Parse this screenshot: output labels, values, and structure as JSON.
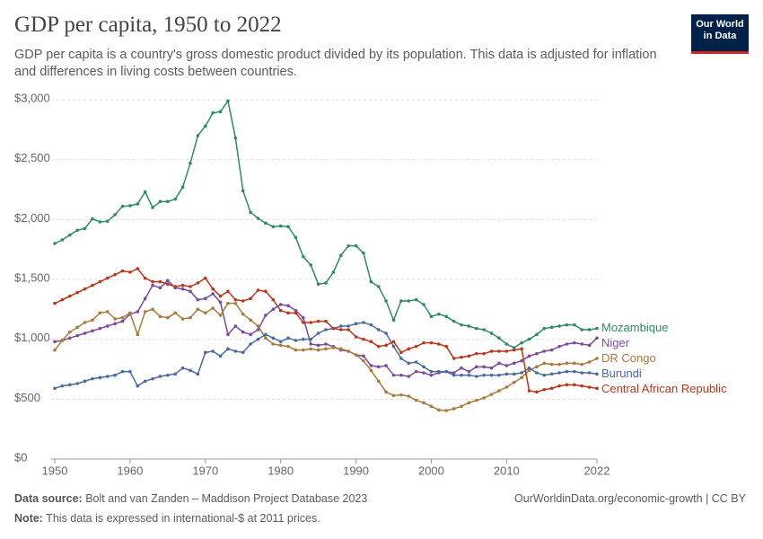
{
  "chart_data": {
    "type": "line",
    "title": "GDP per capita, 1950 to 2022",
    "subtitle": "GDP per capita is a country's gross domestic product divided by its population. This data is adjusted for inflation and differences in living costs between countries.",
    "logo": [
      "Our World",
      "in Data"
    ],
    "source_label": "Data source:",
    "source": "Bolt and van Zanden – Maddison Project Database 2023",
    "url": "OurWorldinData.org/economic-growth | CC BY",
    "note_label": "Note:",
    "note": "This data is expressed in international-$ at 2011 prices.",
    "x": [
      1950,
      1951,
      1952,
      1953,
      1954,
      1955,
      1956,
      1957,
      1958,
      1959,
      1960,
      1961,
      1962,
      1963,
      1964,
      1965,
      1966,
      1967,
      1968,
      1969,
      1970,
      1971,
      1972,
      1973,
      1974,
      1975,
      1976,
      1977,
      1978,
      1979,
      1980,
      1981,
      1982,
      1983,
      1984,
      1985,
      1986,
      1987,
      1988,
      1989,
      1990,
      1991,
      1992,
      1993,
      1994,
      1995,
      1996,
      1997,
      1998,
      1999,
      2000,
      2001,
      2002,
      2003,
      2004,
      2005,
      2006,
      2007,
      2008,
      2009,
      2010,
      2011,
      2012,
      2013,
      2014,
      2015,
      2016,
      2017,
      2018,
      2019,
      2020,
      2021,
      2022
    ],
    "xlim": [
      1950,
      2022
    ],
    "xticks": [
      1950,
      1960,
      1970,
      1980,
      1990,
      2000,
      2010,
      2022
    ],
    "ylim": [
      0,
      3000
    ],
    "yticks": [
      {
        "value": 0,
        "label": "$0"
      },
      {
        "value": 500,
        "label": "$500"
      },
      {
        "value": 1000,
        "label": "$1,000"
      },
      {
        "value": 1500,
        "label": "$1,500"
      },
      {
        "value": 2000,
        "label": "$2,000"
      },
      {
        "value": 2500,
        "label": "$2,500"
      },
      {
        "value": 3000,
        "label": "$3,000"
      }
    ],
    "grid": true,
    "series": [
      {
        "name": "Mozambique",
        "color": "#2f8a68",
        "values": [
          1800,
          1830,
          1870,
          1910,
          1925,
          2005,
          1980,
          1985,
          2040,
          2110,
          2115,
          2130,
          2230,
          2100,
          2150,
          2150,
          2170,
          2270,
          2470,
          2700,
          2780,
          2890,
          2900,
          2990,
          2680,
          2240,
          2060,
          2010,
          1970,
          1940,
          1945,
          1940,
          1850,
          1690,
          1620,
          1460,
          1470,
          1560,
          1700,
          1780,
          1780,
          1720,
          1480,
          1440,
          1320,
          1160,
          1320,
          1320,
          1330,
          1290,
          1190,
          1210,
          1190,
          1150,
          1120,
          1110,
          1090,
          1080,
          1050,
          1010,
          960,
          930,
          970,
          1000,
          1040,
          1090,
          1100,
          1110,
          1120,
          1120,
          1080,
          1080,
          1090
        ]
      },
      {
        "name": "Niger",
        "color": "#7b4a9c",
        "values": [
          980,
          990,
          1010,
          1030,
          1050,
          1070,
          1090,
          1110,
          1130,
          1150,
          1210,
          1230,
          1340,
          1450,
          1430,
          1490,
          1430,
          1420,
          1400,
          1330,
          1340,
          1380,
          1310,
          1040,
          1110,
          1060,
          1040,
          1080,
          1200,
          1250,
          1290,
          1280,
          1240,
          1180,
          960,
          950,
          960,
          940,
          910,
          900,
          870,
          860,
          780,
          770,
          780,
          700,
          700,
          690,
          730,
          720,
          700,
          720,
          730,
          720,
          760,
          730,
          770,
          770,
          760,
          800,
          780,
          800,
          820,
          860,
          880,
          900,
          910,
          940,
          960,
          970,
          960,
          950,
          1010
        ]
      },
      {
        "name": "DR Congo",
        "color": "#a87a3e",
        "values": [
          910,
          990,
          1060,
          1100,
          1140,
          1160,
          1220,
          1230,
          1170,
          1180,
          1220,
          1040,
          1230,
          1250,
          1190,
          1180,
          1220,
          1170,
          1180,
          1250,
          1220,
          1260,
          1200,
          1300,
          1300,
          1210,
          1160,
          1110,
          1010,
          960,
          950,
          940,
          910,
          910,
          920,
          910,
          920,
          930,
          920,
          900,
          870,
          820,
          740,
          650,
          560,
          530,
          535,
          525,
          490,
          470,
          440,
          410,
          405,
          420,
          440,
          470,
          490,
          510,
          540,
          570,
          600,
          640,
          680,
          740,
          770,
          800,
          790,
          790,
          800,
          800,
          790,
          810,
          840
        ]
      },
      {
        "name": "Burundi",
        "color": "#4a6aa0",
        "values": [
          590,
          610,
          620,
          630,
          650,
          670,
          680,
          690,
          700,
          730,
          730,
          610,
          650,
          670,
          690,
          700,
          710,
          760,
          740,
          710,
          890,
          900,
          860,
          920,
          900,
          890,
          960,
          1000,
          1040,
          1010,
          980,
          1010,
          990,
          1000,
          1000,
          1050,
          1080,
          1090,
          1110,
          1110,
          1130,
          1140,
          1120,
          1080,
          1050,
          940,
          840,
          800,
          810,
          770,
          730,
          730,
          730,
          700,
          700,
          700,
          690,
          700,
          700,
          700,
          710,
          710,
          720,
          760,
          720,
          700,
          710,
          720,
          730,
          730,
          720,
          720,
          710
        ]
      },
      {
        "name": "Central African Republic",
        "color": "#b9371b",
        "values": [
          1300,
          1330,
          1360,
          1390,
          1420,
          1450,
          1480,
          1510,
          1540,
          1570,
          1560,
          1590,
          1510,
          1480,
          1480,
          1460,
          1440,
          1450,
          1440,
          1470,
          1510,
          1420,
          1360,
          1400,
          1330,
          1320,
          1340,
          1410,
          1400,
          1330,
          1240,
          1220,
          1220,
          1140,
          1140,
          1150,
          1150,
          1090,
          1080,
          1080,
          1020,
          1000,
          980,
          940,
          950,
          980,
          890,
          920,
          940,
          970,
          970,
          960,
          940,
          840,
          850,
          860,
          880,
          880,
          900,
          900,
          900,
          910,
          920,
          570,
          560,
          580,
          590,
          610,
          620,
          620,
          610,
          600,
          590
        ]
      }
    ]
  }
}
